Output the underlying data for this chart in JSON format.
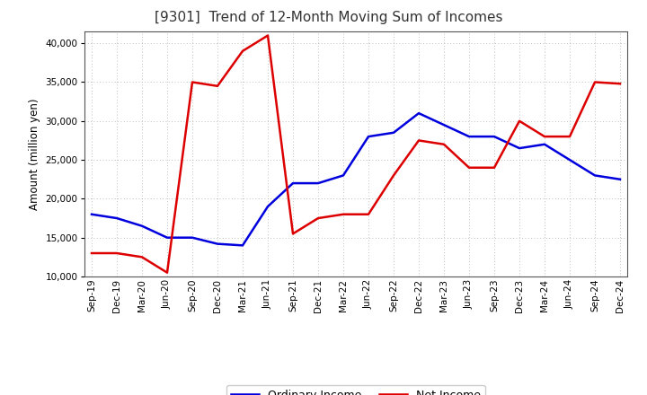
{
  "title": "[9301]  Trend of 12-Month Moving Sum of Incomes",
  "ylabel": "Amount (million yen)",
  "background_color": "#ffffff",
  "plot_bg_color": "#ffffff",
  "grid_color": "#aaaaaa",
  "x_labels": [
    "Sep-19",
    "Dec-19",
    "Mar-20",
    "Jun-20",
    "Sep-20",
    "Dec-20",
    "Mar-21",
    "Jun-21",
    "Sep-21",
    "Dec-21",
    "Mar-22",
    "Jun-22",
    "Sep-22",
    "Dec-22",
    "Mar-23",
    "Jun-23",
    "Sep-23",
    "Dec-23",
    "Mar-24",
    "Jun-24",
    "Sep-24",
    "Dec-24"
  ],
  "ordinary_income": [
    18000,
    17500,
    16500,
    15000,
    15000,
    14200,
    14000,
    19000,
    22000,
    22000,
    23000,
    28000,
    28500,
    31000,
    29500,
    28000,
    28000,
    26500,
    27000,
    25000,
    23000,
    22500
  ],
  "net_income": [
    13000,
    13000,
    12500,
    10500,
    35000,
    34500,
    39000,
    41000,
    15500,
    17500,
    18000,
    18000,
    23000,
    27500,
    27000,
    24000,
    24000,
    30000,
    28000,
    28000,
    35000,
    34800
  ],
  "ordinary_color": "#0000dd",
  "net_color": "#dd0000",
  "ylim": [
    10000,
    41500
  ],
  "yticks": [
    10000,
    15000,
    20000,
    25000,
    30000,
    35000,
    40000
  ],
  "line_width": 1.8,
  "title_fontsize": 11,
  "label_fontsize": 8.5,
  "tick_fontsize": 7.5,
  "legend_fontsize": 9
}
